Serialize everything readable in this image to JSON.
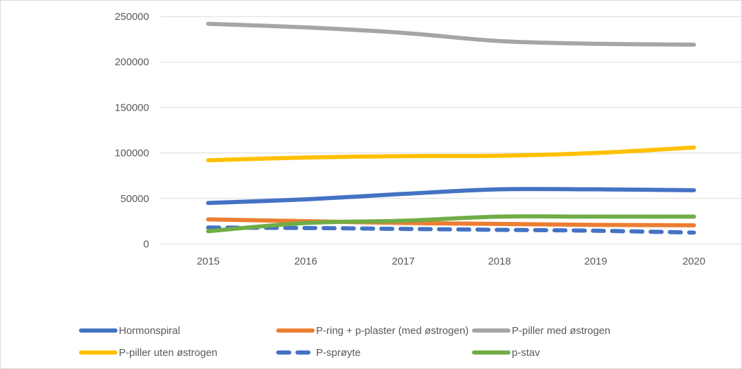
{
  "chart_data": {
    "type": "line",
    "title": "",
    "xlabel": "",
    "ylabel": "",
    "x": [
      "2015",
      "2016",
      "2017",
      "2018",
      "2019",
      "2020"
    ],
    "ylim": [
      0,
      250000
    ],
    "yticks": [
      "0",
      "50000",
      "100000",
      "150000",
      "200000",
      "250000"
    ],
    "grid": true,
    "legend_position": "bottom",
    "series": [
      {
        "name": "Hormonspiral",
        "color": "#4472c4",
        "dash": "solid",
        "values": [
          45000,
          49000,
          55000,
          60000,
          60000,
          59000
        ]
      },
      {
        "name": "P-ring + p-plaster (med østrogen)",
        "color": "#ed7d31",
        "dash": "solid",
        "values": [
          27000,
          25000,
          23000,
          22000,
          21000,
          20500
        ]
      },
      {
        "name": "P-piller med østrogen",
        "color": "#a5a5a5",
        "dash": "solid",
        "values": [
          242000,
          238000,
          232000,
          223000,
          220000,
          219000
        ]
      },
      {
        "name": "P-piller uten østrogen",
        "color": "#ffc000",
        "dash": "solid",
        "values": [
          92000,
          95000,
          96500,
          97000,
          100000,
          106000
        ]
      },
      {
        "name": "P-sprøyte",
        "color": "#4472c4",
        "dash": "dashed",
        "values": [
          18000,
          17500,
          16500,
          15500,
          14500,
          12500
        ]
      },
      {
        "name": "p-stav",
        "color": "#70ad47",
        "dash": "solid",
        "values": [
          14000,
          23000,
          25500,
          30000,
          30000,
          30000
        ]
      }
    ]
  }
}
